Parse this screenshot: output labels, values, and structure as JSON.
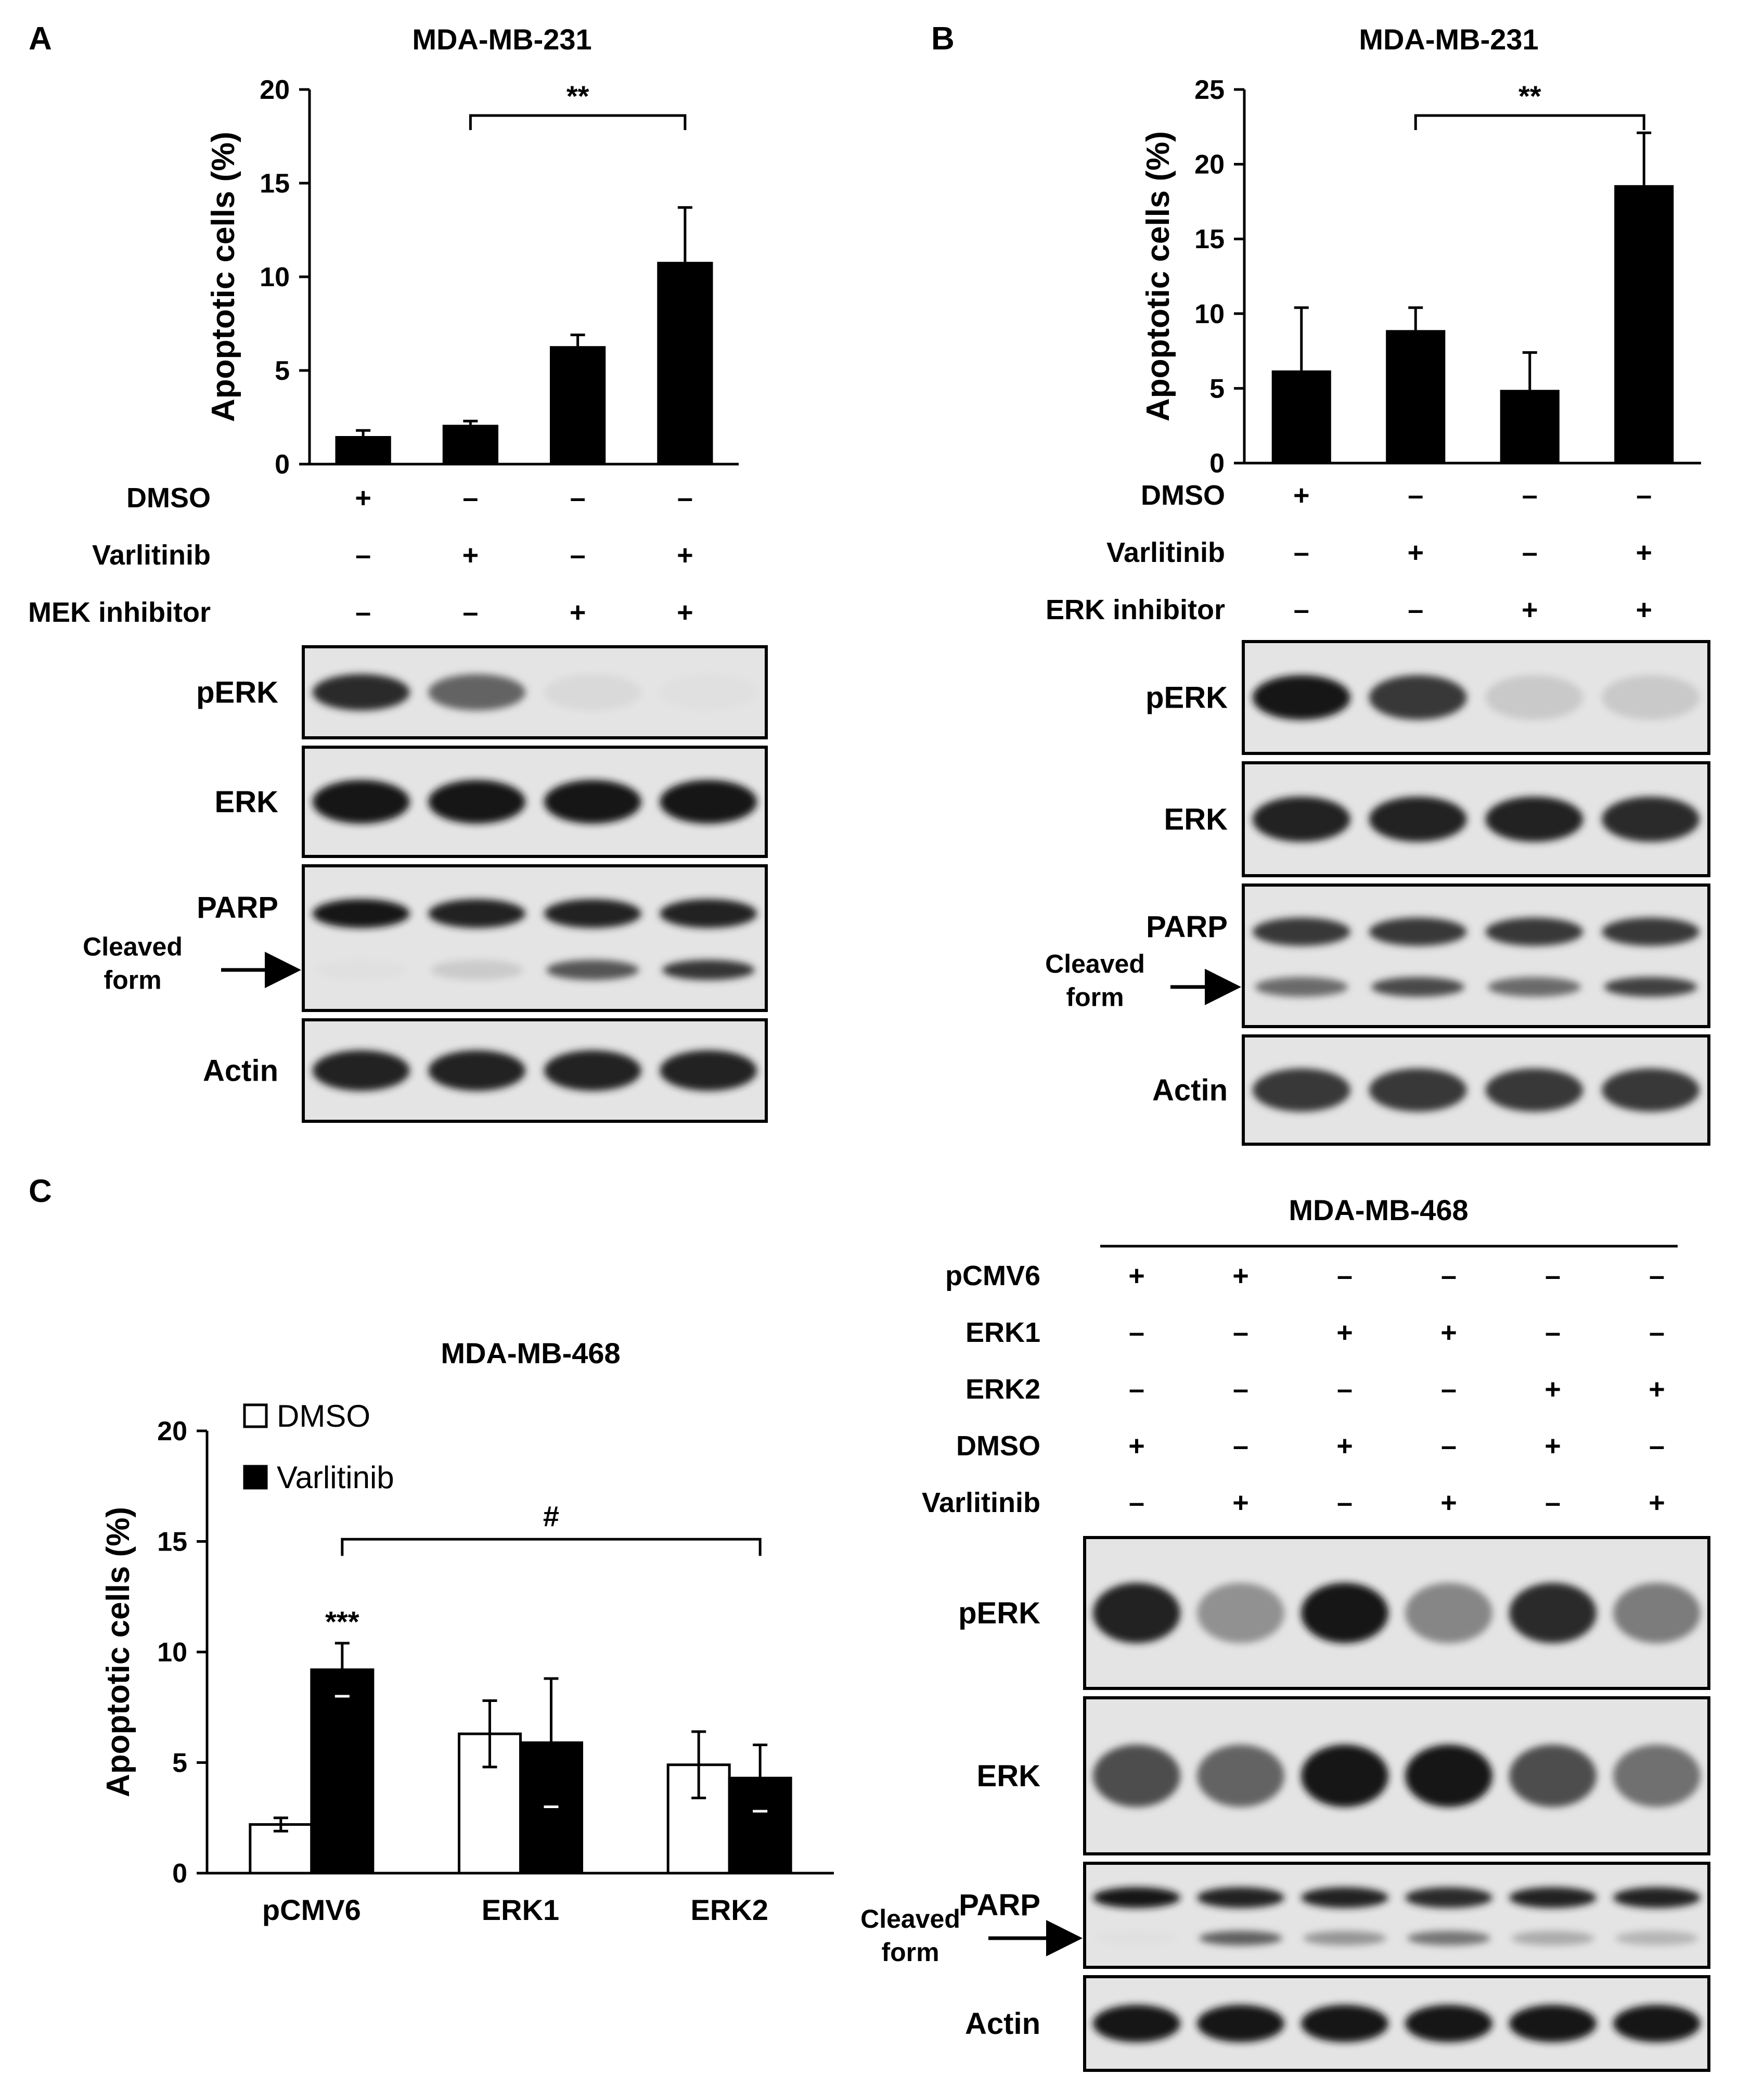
{
  "panels": {
    "A": {
      "letter": "A",
      "title": "MDA-MB-231"
    },
    "B": {
      "letter": "B",
      "title": "MDA-MB-231"
    },
    "C": {
      "letter": "C",
      "title": "MDA-MB-468",
      "blot_title": "MDA-MB-468"
    }
  },
  "chart_data": [
    {
      "panel": "A",
      "type": "bar",
      "title": "MDA-MB-231",
      "ylabel": "Apoptotic cells (%)",
      "ylim": [
        0,
        20
      ],
      "yticks": [
        0,
        5,
        10,
        15,
        20
      ],
      "values": [
        1.5,
        2.1,
        6.3,
        10.8
      ],
      "errors": [
        0.3,
        0.2,
        0.6,
        2.9
      ],
      "significance": {
        "from": 1,
        "to": 3,
        "label": "**"
      },
      "conditions": [
        {
          "name": "DMSO",
          "signs": [
            "+",
            "–",
            "–",
            "–"
          ]
        },
        {
          "name": "Varlitinib",
          "signs": [
            "–",
            "+",
            "–",
            "+"
          ]
        },
        {
          "name": "MEK inhibitor",
          "signs": [
            "–",
            "–",
            "+",
            "+"
          ]
        }
      ]
    },
    {
      "panel": "B",
      "type": "bar",
      "title": "MDA-MB-231",
      "ylabel": "Apoptotic cells (%)",
      "ylim": [
        0,
        25
      ],
      "yticks": [
        0,
        5,
        10,
        15,
        20,
        25
      ],
      "values": [
        6.2,
        8.9,
        4.9,
        18.6
      ],
      "errors": [
        4.2,
        1.5,
        2.5,
        3.5
      ],
      "significance": {
        "from": 1,
        "to": 3,
        "label": "**"
      },
      "conditions": [
        {
          "name": "DMSO",
          "signs": [
            "+",
            "–",
            "–",
            "–"
          ]
        },
        {
          "name": "Varlitinib",
          "signs": [
            "–",
            "+",
            "–",
            "+"
          ]
        },
        {
          "name": "ERK inhibitor",
          "signs": [
            "–",
            "–",
            "+",
            "+"
          ]
        }
      ]
    },
    {
      "panel": "C",
      "type": "bar",
      "title": "MDA-MB-468",
      "ylabel": "Apoptotic cells (%)",
      "ylim": [
        0,
        20
      ],
      "yticks": [
        0,
        5,
        10,
        15,
        20
      ],
      "categories": [
        "pCMV6",
        "ERK1",
        "ERK2"
      ],
      "series": [
        {
          "name": "DMSO",
          "values": [
            2.2,
            6.3,
            4.9
          ],
          "errors": [
            0.3,
            1.5,
            1.5
          ]
        },
        {
          "name": "Varlitinib",
          "values": [
            9.2,
            5.9,
            4.3
          ],
          "errors": [
            1.2,
            2.9,
            1.5
          ]
        }
      ],
      "annotations": [
        {
          "category": 0,
          "series": 1,
          "label": "***"
        }
      ],
      "significance": {
        "from": 0,
        "to": 2,
        "label": "#"
      }
    }
  ],
  "blots": {
    "A": {
      "lanes": 4,
      "rows": [
        {
          "label": "pERK",
          "intensity": [
            0.85,
            0.6,
            0.08,
            0.05
          ]
        },
        {
          "label": "ERK",
          "intensity": [
            0.95,
            0.95,
            0.95,
            0.95
          ]
        },
        {
          "label": "PARP",
          "cleaved_label": [
            "Cleaved",
            "form"
          ],
          "intensity": [
            0.95,
            0.9,
            0.9,
            0.9
          ],
          "cleaved": [
            0.05,
            0.15,
            0.7,
            0.85
          ]
        },
        {
          "label": "Actin",
          "intensity": [
            0.9,
            0.9,
            0.9,
            0.9
          ]
        }
      ]
    },
    "B": {
      "lanes": 4,
      "rows": [
        {
          "label": "pERK",
          "intensity": [
            0.95,
            0.8,
            0.15,
            0.15
          ]
        },
        {
          "label": "ERK",
          "intensity": [
            0.9,
            0.9,
            0.9,
            0.85
          ]
        },
        {
          "label": "PARP",
          "cleaved_label": [
            "Cleaved",
            "form"
          ],
          "intensity": [
            0.8,
            0.8,
            0.8,
            0.8
          ],
          "cleaved": [
            0.6,
            0.75,
            0.6,
            0.8
          ]
        },
        {
          "label": "Actin",
          "intensity": [
            0.8,
            0.8,
            0.8,
            0.8
          ]
        }
      ]
    },
    "C": {
      "lanes": 6,
      "conditions": [
        {
          "name": "pCMV6",
          "signs": [
            "+",
            "+",
            "–",
            "–",
            "–",
            "–"
          ]
        },
        {
          "name": "ERK1",
          "signs": [
            "–",
            "–",
            "+",
            "+",
            "–",
            "–"
          ]
        },
        {
          "name": "ERK2",
          "signs": [
            "–",
            "–",
            "–",
            "–",
            "+",
            "+"
          ]
        },
        {
          "name": "DMSO",
          "signs": [
            "+",
            "–",
            "+",
            "–",
            "+",
            "–"
          ]
        },
        {
          "name": "Varlitinib",
          "signs": [
            "–",
            "+",
            "–",
            "+",
            "–",
            "+"
          ]
        }
      ],
      "rows": [
        {
          "label": "pERK",
          "intensity": [
            0.9,
            0.4,
            0.95,
            0.45,
            0.85,
            0.5
          ]
        },
        {
          "label": "ERK",
          "intensity": [
            0.7,
            0.6,
            0.95,
            0.95,
            0.7,
            0.55
          ]
        },
        {
          "label": "PARP",
          "cleaved_label": [
            "Cleaved",
            "form"
          ],
          "intensity": [
            0.95,
            0.9,
            0.9,
            0.85,
            0.9,
            0.9
          ],
          "cleaved": [
            0.05,
            0.65,
            0.4,
            0.55,
            0.3,
            0.25
          ]
        },
        {
          "label": "Actin",
          "intensity": [
            0.95,
            0.95,
            0.95,
            0.95,
            0.95,
            0.95
          ]
        }
      ]
    }
  }
}
